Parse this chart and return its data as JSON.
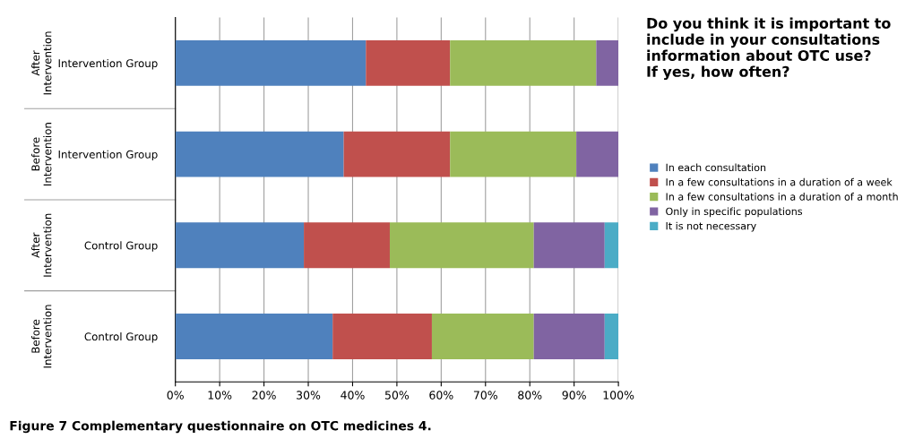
{
  "chart_data": {
    "type": "bar",
    "orientation": "horizontal",
    "stacked": true,
    "title": "Do you think it is important to\ninclude in your consultations\ninformation about OTC use?\nIf yes, how often?",
    "categories": [
      "Intervention Group",
      "Intervention Group",
      "Control Group",
      "Control Group"
    ],
    "series": [
      {
        "name": "In each consultation",
        "color": "#4f81bd",
        "values": [
          43,
          38,
          29,
          35.5
        ]
      },
      {
        "name": "In a few consultations in a duration of a week",
        "color": "#c0504d",
        "values": [
          19,
          24,
          19.4,
          22.4
        ]
      },
      {
        "name": "In a few consultations in a duration of a month",
        "color": "#9bbb59",
        "values": [
          33,
          28.5,
          32.5,
          23
        ]
      },
      {
        "name": "Only in specific populations",
        "color": "#8064a2",
        "values": [
          5,
          9.5,
          16,
          16
        ]
      },
      {
        "name": "It is not necessary",
        "color": "#4bacc6",
        "values": [
          0,
          0,
          3.1,
          3.1
        ]
      }
    ],
    "xlim": [
      0,
      100
    ],
    "xticks": [
      {
        "value": 0,
        "label": "0%"
      },
      {
        "value": 10,
        "label": "10%"
      },
      {
        "value": 20,
        "label": "20%"
      },
      {
        "value": 30,
        "label": "30%"
      },
      {
        "value": 40,
        "label": "40%"
      },
      {
        "value": 50,
        "label": "50%"
      },
      {
        "value": 60,
        "label": "60%"
      },
      {
        "value": 70,
        "label": "70%"
      },
      {
        "value": 80,
        "label": "80%"
      },
      {
        "value": 90,
        "label": "90%"
      },
      {
        "value": 100,
        "label": "100%"
      }
    ],
    "grid": "x",
    "legend": "right",
    "annotations": [
      "After\nIntervention",
      "Before\nIntervention",
      "After\nIntervention",
      "Before\nIntervention",
      "Figure 7 Complementary questionnaire on OTC medicines 4."
    ]
  }
}
